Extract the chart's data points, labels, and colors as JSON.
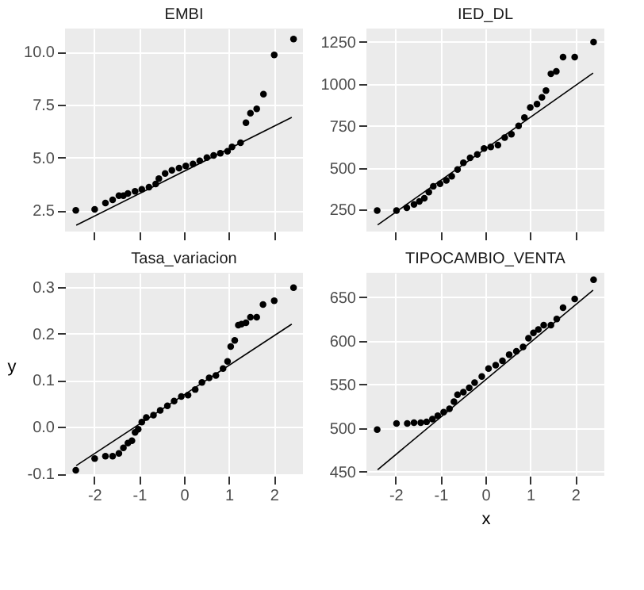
{
  "chart_data": [
    {
      "type": "scatter",
      "title": "EMBI",
      "xlim": [
        -2.65,
        2.65
      ],
      "xticks": [
        -2,
        -1,
        0,
        1,
        2
      ],
      "ylim": [
        1.5,
        11.1
      ],
      "yticks": [
        {
          "value": 2.5,
          "label": "2.5"
        },
        {
          "value": 5,
          "label": "5.0"
        },
        {
          "value": 7.5,
          "label": "7.5"
        },
        {
          "value": 10,
          "label": "10.0"
        }
      ],
      "tick_labels": "y",
      "grid": true,
      "marker": "circle",
      "series": [
        {
          "type": "scatter",
          "color": "#000000",
          "x": [
            -2.41,
            -1.99,
            -1.75,
            -1.59,
            -1.45,
            -1.35,
            -1.25,
            -1.09,
            -0.94,
            -0.78,
            -0.63,
            -0.56,
            -0.42,
            -0.27,
            -0.11,
            0.04,
            0.2,
            0.35,
            0.51,
            0.66,
            0.81,
            0.97,
            1.07,
            1.26,
            1.38,
            1.48,
            1.62,
            1.77,
            2.01,
            2.44
          ],
          "values": [
            2.5,
            2.55,
            2.85,
            3.0,
            3.2,
            3.2,
            3.3,
            3.4,
            3.5,
            3.6,
            3.75,
            4.0,
            4.25,
            4.4,
            4.5,
            4.6,
            4.7,
            4.85,
            5.0,
            5.1,
            5.2,
            5.3,
            5.5,
            5.7,
            6.65,
            7.1,
            7.3,
            8.0,
            9.85,
            10.6
          ]
        },
        {
          "type": "line",
          "marker": "none",
          "color": "#000000",
          "x": [
            -2.4,
            2.4
          ],
          "values": [
            1.8,
            6.9
          ]
        }
      ]
    },
    {
      "type": "scatter",
      "title": "IED_DL",
      "xlim": [
        -2.65,
        2.65
      ],
      "xticks": [
        -2,
        -1,
        0,
        1,
        2
      ],
      "ylim": [
        120,
        1330
      ],
      "yticks": [
        250,
        500,
        750,
        1000,
        1250
      ],
      "tick_labels": "y",
      "grid": true,
      "marker": "circle",
      "series": [
        {
          "type": "scatter",
          "color": "#000000",
          "x": [
            -2.41,
            -1.98,
            -1.75,
            -1.59,
            -1.47,
            -1.36,
            -1.26,
            -1.16,
            -1.01,
            -0.87,
            -0.75,
            -0.62,
            -0.49,
            -0.34,
            -0.18,
            -0.03,
            0.12,
            0.28,
            0.43,
            0.58,
            0.74,
            0.87,
            1.0,
            1.15,
            1.26,
            1.35,
            1.46,
            1.58,
            1.73,
            1.99,
            2.41
          ],
          "values": [
            245,
            245,
            262,
            282,
            300,
            318,
            355,
            390,
            405,
            425,
            450,
            490,
            530,
            560,
            580,
            615,
            625,
            635,
            680,
            700,
            750,
            800,
            860,
            880,
            920,
            960,
            1060,
            1075,
            1160,
            1160,
            1250
          ]
        },
        {
          "type": "line",
          "marker": "none",
          "color": "#000000",
          "x": [
            -2.4,
            2.4
          ],
          "values": [
            160,
            1065
          ]
        }
      ]
    },
    {
      "type": "scatter",
      "title": "Tasa_variacion",
      "ylabel": "y",
      "xlim": [
        -2.65,
        2.65
      ],
      "xticks": [
        -2,
        -1,
        0,
        1,
        2
      ],
      "ylim": [
        -0.105,
        0.33
      ],
      "yticks": [
        {
          "value": -0.1,
          "label": "-0.1"
        },
        {
          "value": 0,
          "label": "0.0"
        },
        {
          "value": 0.1,
          "label": "0.1"
        },
        {
          "value": 0.2,
          "label": "0.2"
        },
        {
          "value": 0.3,
          "label": "0.3"
        }
      ],
      "grid": true,
      "marker": "circle",
      "series": [
        {
          "type": "scatter",
          "color": "#000000",
          "x": [
            -2.41,
            -1.99,
            -1.75,
            -1.59,
            -1.45,
            -1.35,
            -1.25,
            -1.16,
            -1.09,
            -1.02,
            -0.94,
            -0.84,
            -0.68,
            -0.53,
            -0.37,
            -0.22,
            -0.06,
            0.09,
            0.25,
            0.4,
            0.56,
            0.71,
            0.87,
            0.97,
            1.04,
            1.13,
            1.21,
            1.28,
            1.38,
            1.48,
            1.62,
            1.76,
            2.01,
            2.44
          ],
          "values": [
            -0.093,
            -0.068,
            -0.063,
            -0.063,
            -0.057,
            -0.045,
            -0.035,
            -0.03,
            -0.012,
            -0.005,
            0.01,
            0.02,
            0.025,
            0.035,
            0.045,
            0.055,
            0.065,
            0.068,
            0.08,
            0.095,
            0.105,
            0.11,
            0.125,
            0.14,
            0.172,
            0.185,
            0.218,
            0.22,
            0.223,
            0.235,
            0.235,
            0.262,
            0.27,
            0.298
          ]
        },
        {
          "type": "line",
          "marker": "none",
          "color": "#000000",
          "x": [
            -2.4,
            2.4
          ],
          "values": [
            -0.083,
            0.22
          ]
        }
      ]
    },
    {
      "type": "scatter",
      "title": "TIPOCAMBIO_VENTA",
      "xlabel": "x",
      "xlim": [
        -2.65,
        2.65
      ],
      "xticks": [
        -2,
        -1,
        0,
        1,
        2
      ],
      "ylim": [
        445,
        678
      ],
      "yticks": [
        450,
        500,
        550,
        600,
        650
      ],
      "grid": true,
      "marker": "circle",
      "series": [
        {
          "type": "scatter",
          "color": "#000000",
          "x": [
            -2.41,
            -1.98,
            -1.74,
            -1.59,
            -1.44,
            -1.31,
            -1.18,
            -1.06,
            -0.93,
            -0.8,
            -0.7,
            -0.62,
            -0.49,
            -0.36,
            -0.24,
            -0.08,
            0.07,
            0.23,
            0.38,
            0.53,
            0.69,
            0.84,
            0.96,
            1.07,
            1.18,
            1.3,
            1.46,
            1.59,
            1.73,
            1.99,
            2.41
          ],
          "values": [
            498,
            505,
            505,
            506,
            506,
            507,
            510,
            514,
            518,
            522,
            530,
            538,
            541,
            546,
            552,
            559,
            568,
            572,
            577,
            584,
            588,
            593,
            603,
            609,
            613,
            618,
            618,
            625,
            638,
            648,
            670
          ]
        },
        {
          "type": "line",
          "marker": "none",
          "color": "#000000",
          "x": [
            -2.4,
            2.4
          ],
          "values": [
            452,
            658
          ]
        }
      ]
    }
  ]
}
